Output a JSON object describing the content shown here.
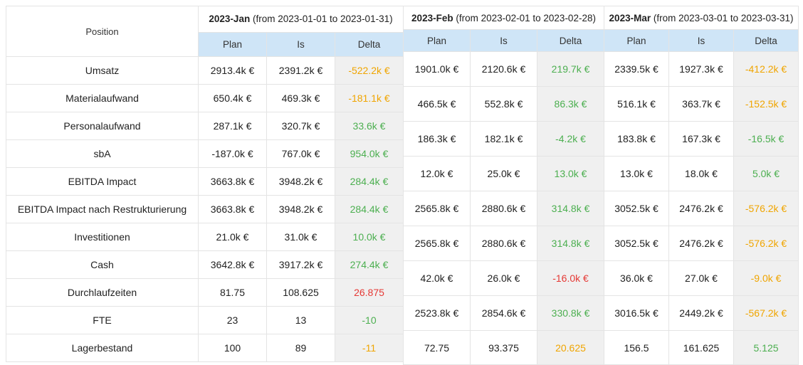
{
  "header": {
    "position_label": "Position",
    "months": [
      {
        "name": "2023-Jan",
        "range": "(from 2023-01-01 to 2023-01-31)"
      },
      {
        "name": "2023-Feb",
        "range": "(from 2023-02-01 to 2023-02-28)"
      },
      {
        "name": "2023-Mar",
        "range": "(from 2023-03-01 to 2023-03-31)"
      }
    ],
    "sub": {
      "plan": "Plan",
      "is": "Is",
      "delta": "Delta"
    }
  },
  "jan": {
    "rows": [
      {
        "position": "Umsatz",
        "plan": "2913.4k €",
        "is": "2391.2k €",
        "delta": "-522.2k €",
        "tone": "warn"
      },
      {
        "position": "Materialaufwand",
        "plan": "650.4k €",
        "is": "469.3k €",
        "delta": "-181.1k €",
        "tone": "warn"
      },
      {
        "position": "Personalaufwand",
        "plan": "287.1k €",
        "is": "320.7k €",
        "delta": "33.6k €",
        "tone": "pos"
      },
      {
        "position": "sbA",
        "plan": "-187.0k €",
        "is": "767.0k €",
        "delta": "954.0k €",
        "tone": "pos"
      },
      {
        "position": "EBITDA Impact",
        "plan": "3663.8k €",
        "is": "3948.2k €",
        "delta": "284.4k €",
        "tone": "pos"
      },
      {
        "position": "EBITDA Impact nach Restrukturierung",
        "plan": "3663.8k €",
        "is": "3948.2k €",
        "delta": "284.4k €",
        "tone": "pos"
      },
      {
        "position": "Investitionen",
        "plan": "21.0k €",
        "is": "31.0k €",
        "delta": "10.0k €",
        "tone": "pos"
      },
      {
        "position": "Cash",
        "plan": "3642.8k €",
        "is": "3917.2k €",
        "delta": "274.4k €",
        "tone": "pos"
      },
      {
        "position": "Durchlaufzeiten",
        "plan": "81.75",
        "is": "108.625",
        "delta": "26.875",
        "tone": "neg"
      },
      {
        "position": "FTE",
        "plan": "23",
        "is": "13",
        "delta": "-10",
        "tone": "pos"
      },
      {
        "position": "Lagerbestand",
        "plan": "100",
        "is": "89",
        "delta": "-11",
        "tone": "warn"
      }
    ]
  },
  "feb": {
    "rows": [
      {
        "plan": "1901.0k €",
        "is": "2120.6k €",
        "delta": "219.7k €",
        "tone": "pos"
      },
      {
        "plan": "466.5k €",
        "is": "552.8k €",
        "delta": "86.3k €",
        "tone": "pos"
      },
      {
        "plan": "186.3k €",
        "is": "182.1k €",
        "delta": "-4.2k €",
        "tone": "pos"
      },
      {
        "plan": "12.0k €",
        "is": "25.0k €",
        "delta": "13.0k €",
        "tone": "pos"
      },
      {
        "plan": "2565.8k €",
        "is": "2880.6k €",
        "delta": "314.8k €",
        "tone": "pos"
      },
      {
        "plan": "2565.8k €",
        "is": "2880.6k €",
        "delta": "314.8k €",
        "tone": "pos"
      },
      {
        "plan": "42.0k €",
        "is": "26.0k €",
        "delta": "-16.0k €",
        "tone": "neg"
      },
      {
        "plan": "2523.8k €",
        "is": "2854.6k €",
        "delta": "330.8k €",
        "tone": "pos"
      },
      {
        "plan": "72.75",
        "is": "93.375",
        "delta": "20.625",
        "tone": "warn"
      }
    ]
  },
  "mar": {
    "rows": [
      {
        "plan": "2339.5k €",
        "is": "1927.3k €",
        "delta": "-412.2k €",
        "tone": "warn"
      },
      {
        "plan": "516.1k €",
        "is": "363.7k €",
        "delta": "-152.5k €",
        "tone": "warn"
      },
      {
        "plan": "183.8k €",
        "is": "167.3k €",
        "delta": "-16.5k €",
        "tone": "pos"
      },
      {
        "plan": "13.0k €",
        "is": "18.0k €",
        "delta": "5.0k €",
        "tone": "pos"
      },
      {
        "plan": "3052.5k €",
        "is": "2476.2k €",
        "delta": "-576.2k €",
        "tone": "warn"
      },
      {
        "plan": "3052.5k €",
        "is": "2476.2k €",
        "delta": "-576.2k €",
        "tone": "warn"
      },
      {
        "plan": "36.0k €",
        "is": "27.0k €",
        "delta": "-9.0k €",
        "tone": "warn"
      },
      {
        "plan": "3016.5k €",
        "is": "2449.2k €",
        "delta": "-567.2k €",
        "tone": "warn"
      },
      {
        "plan": "156.5",
        "is": "161.625",
        "delta": "5.125",
        "tone": "pos"
      }
    ]
  },
  "colors": {
    "header_bg": "#cfe5f7",
    "delta_bg": "#f0f0f0",
    "positive": "#4caf50",
    "warning": "#f0a500",
    "negative": "#e53935"
  }
}
